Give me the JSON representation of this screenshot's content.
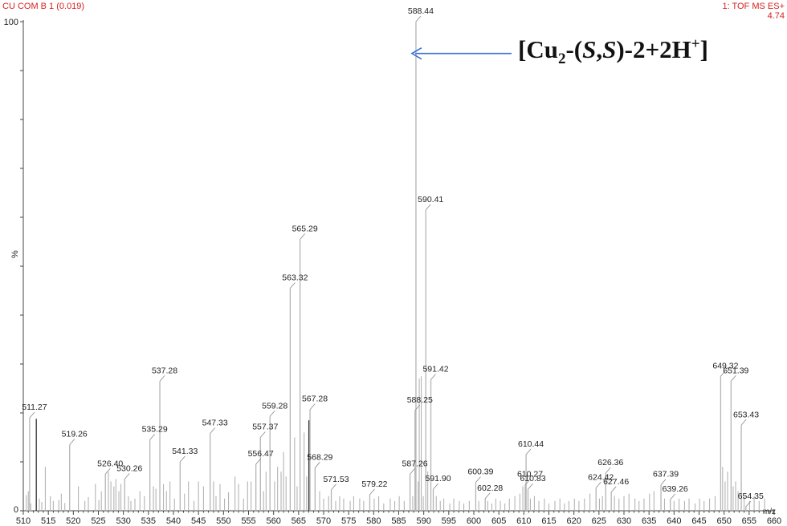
{
  "header": {
    "left_title": "CU COM B 1 (0.019)",
    "right_title": "1: TOF MS ES+",
    "right_value": "4.74"
  },
  "annotation": {
    "prefix": "[Cu",
    "sub": "2",
    "mid1": "-(",
    "s1": "S",
    "comma": ",",
    "s2": "S",
    "mid2": ")-2+2H",
    "sup": "+",
    "suffix": "]",
    "arrow_target_mz": 588.44,
    "arrow_level": 93.5
  },
  "colors": {
    "peak": "#b4b4b4",
    "peak_dark": "#333333",
    "arrow": "#3a6fd8",
    "header": "#d62020"
  },
  "chart_data": {
    "type": "bar",
    "title": "",
    "xlabel": "m/z",
    "ylabel": "%",
    "xlim": [
      510,
      660
    ],
    "ylim": [
      0,
      100
    ],
    "x_ticks": [
      510,
      515,
      520,
      525,
      530,
      535,
      540,
      545,
      550,
      555,
      560,
      565,
      570,
      575,
      580,
      585,
      590,
      595,
      600,
      605,
      610,
      615,
      620,
      625,
      630,
      635,
      640,
      645,
      650,
      655,
      660
    ],
    "y_ticks": [
      0,
      100
    ],
    "labeled_peaks": [
      {
        "mz": 511.27,
        "intensity": 19,
        "label": "511.27"
      },
      {
        "mz": 519.26,
        "intensity": 13.5,
        "label": "519.26"
      },
      {
        "mz": 526.4,
        "intensity": 7.5,
        "label": "526.40"
      },
      {
        "mz": 530.26,
        "intensity": 6.5,
        "label": "530.26"
      },
      {
        "mz": 535.29,
        "intensity": 14.5,
        "label": "535.29"
      },
      {
        "mz": 537.28,
        "intensity": 26.5,
        "label": "537.28"
      },
      {
        "mz": 541.33,
        "intensity": 10,
        "label": "541.33"
      },
      {
        "mz": 547.33,
        "intensity": 15.8,
        "label": "547.33"
      },
      {
        "mz": 556.47,
        "intensity": 9.5,
        "label": "556.47"
      },
      {
        "mz": 557.37,
        "intensity": 15,
        "label": "557.37"
      },
      {
        "mz": 559.28,
        "intensity": 19.3,
        "label": "559.28"
      },
      {
        "mz": 563.32,
        "intensity": 45.5,
        "label": "563.32"
      },
      {
        "mz": 565.29,
        "intensity": 55.5,
        "label": "565.29"
      },
      {
        "mz": 567.28,
        "intensity": 20.7,
        "label": "567.28"
      },
      {
        "mz": 568.29,
        "intensity": 8.8,
        "label": "568.29"
      },
      {
        "mz": 571.53,
        "intensity": 4.3,
        "label": "571.53"
      },
      {
        "mz": 579.22,
        "intensity": 3.3,
        "label": "579.22"
      },
      {
        "mz": 587.26,
        "intensity": 7.5,
        "label": "587.26"
      },
      {
        "mz": 588.25,
        "intensity": 20.5,
        "label": "588.25"
      },
      {
        "mz": 588.44,
        "intensity": 100,
        "label": "588.44"
      },
      {
        "mz": 590.41,
        "intensity": 61.5,
        "label": "590.41"
      },
      {
        "mz": 591.42,
        "intensity": 26.8,
        "label": "591.42"
      },
      {
        "mz": 591.9,
        "intensity": 4.4,
        "label": "591.90"
      },
      {
        "mz": 600.39,
        "intensity": 5.8,
        "label": "600.39"
      },
      {
        "mz": 602.28,
        "intensity": 2.5,
        "label": "602.28"
      },
      {
        "mz": 610.27,
        "intensity": 5.3,
        "label": "610.27"
      },
      {
        "mz": 610.44,
        "intensity": 11.5,
        "label": "610.44"
      },
      {
        "mz": 610.83,
        "intensity": 4.4,
        "label": "610.83"
      },
      {
        "mz": 624.42,
        "intensity": 4.7,
        "label": "624.42"
      },
      {
        "mz": 626.36,
        "intensity": 7.7,
        "label": "626.36"
      },
      {
        "mz": 627.46,
        "intensity": 3.8,
        "label": "627.46"
      },
      {
        "mz": 637.39,
        "intensity": 5.3,
        "label": "637.39"
      },
      {
        "mz": 639.26,
        "intensity": 2.3,
        "label": "639.26"
      },
      {
        "mz": 649.32,
        "intensity": 27.5,
        "label": "649.32"
      },
      {
        "mz": 651.39,
        "intensity": 26.5,
        "label": "651.39"
      },
      {
        "mz": 653.43,
        "intensity": 17.5,
        "label": "653.43"
      },
      {
        "mz": 654.35,
        "intensity": 0.8,
        "label": "654.35"
      }
    ],
    "minor_peaks": [
      {
        "mz": 510.6,
        "intensity": 3.2
      },
      {
        "mz": 511.0,
        "intensity": 4
      },
      {
        "mz": 511.5,
        "intensity": 1.5
      },
      {
        "mz": 512.6,
        "intensity": 18.8,
        "dark": true
      },
      {
        "mz": 513.2,
        "intensity": 2.5
      },
      {
        "mz": 513.7,
        "intensity": 1.8
      },
      {
        "mz": 514.4,
        "intensity": 9
      },
      {
        "mz": 515.4,
        "intensity": 3
      },
      {
        "mz": 516.0,
        "intensity": 2
      },
      {
        "mz": 517.1,
        "intensity": 2.2
      },
      {
        "mz": 517.6,
        "intensity": 3.5
      },
      {
        "mz": 518.3,
        "intensity": 1.6
      },
      {
        "mz": 521.0,
        "intensity": 5
      },
      {
        "mz": 522.3,
        "intensity": 2
      },
      {
        "mz": 523.0,
        "intensity": 2.8
      },
      {
        "mz": 524.4,
        "intensity": 5.5
      },
      {
        "mz": 525.1,
        "intensity": 2.2
      },
      {
        "mz": 525.6,
        "intensity": 4
      },
      {
        "mz": 527.0,
        "intensity": 8
      },
      {
        "mz": 527.5,
        "intensity": 6
      },
      {
        "mz": 528.1,
        "intensity": 5
      },
      {
        "mz": 528.5,
        "intensity": 6.5
      },
      {
        "mz": 529.1,
        "intensity": 4
      },
      {
        "mz": 529.5,
        "intensity": 5.5
      },
      {
        "mz": 531.0,
        "intensity": 3
      },
      {
        "mz": 531.5,
        "intensity": 2
      },
      {
        "mz": 532.3,
        "intensity": 2.5
      },
      {
        "mz": 533.3,
        "intensity": 4
      },
      {
        "mz": 534.2,
        "intensity": 3
      },
      {
        "mz": 536.0,
        "intensity": 5
      },
      {
        "mz": 536.5,
        "intensity": 4.5
      },
      {
        "mz": 538.0,
        "intensity": 5.5
      },
      {
        "mz": 538.6,
        "intensity": 4
      },
      {
        "mz": 539.3,
        "intensity": 6
      },
      {
        "mz": 540.2,
        "intensity": 2.5
      },
      {
        "mz": 542.2,
        "intensity": 3.5
      },
      {
        "mz": 543.0,
        "intensity": 6
      },
      {
        "mz": 544.1,
        "intensity": 2
      },
      {
        "mz": 545.0,
        "intensity": 6
      },
      {
        "mz": 546.0,
        "intensity": 5
      },
      {
        "mz": 548.0,
        "intensity": 6
      },
      {
        "mz": 548.5,
        "intensity": 3
      },
      {
        "mz": 549.3,
        "intensity": 5.5
      },
      {
        "mz": 550.2,
        "intensity": 2.5
      },
      {
        "mz": 551.0,
        "intensity": 3.8
      },
      {
        "mz": 552.3,
        "intensity": 7
      },
      {
        "mz": 553.0,
        "intensity": 5.5
      },
      {
        "mz": 554.0,
        "intensity": 2.5
      },
      {
        "mz": 554.8,
        "intensity": 6
      },
      {
        "mz": 555.5,
        "intensity": 6
      },
      {
        "mz": 558.0,
        "intensity": 4
      },
      {
        "mz": 558.5,
        "intensity": 8
      },
      {
        "mz": 560.2,
        "intensity": 6
      },
      {
        "mz": 560.8,
        "intensity": 9
      },
      {
        "mz": 561.5,
        "intensity": 8
      },
      {
        "mz": 562.0,
        "intensity": 12
      },
      {
        "mz": 562.5,
        "intensity": 7
      },
      {
        "mz": 564.2,
        "intensity": 15
      },
      {
        "mz": 564.7,
        "intensity": 5
      },
      {
        "mz": 566.1,
        "intensity": 16
      },
      {
        "mz": 566.6,
        "intensity": 7
      },
      {
        "mz": 567.05,
        "intensity": 18.5,
        "dark": true
      },
      {
        "mz": 569.2,
        "intensity": 4
      },
      {
        "mz": 570.0,
        "intensity": 2.5
      },
      {
        "mz": 571.0,
        "intensity": 3
      },
      {
        "mz": 572.4,
        "intensity": 2
      },
      {
        "mz": 573.2,
        "intensity": 3
      },
      {
        "mz": 574.0,
        "intensity": 2.5
      },
      {
        "mz": 575.3,
        "intensity": 2
      },
      {
        "mz": 576.0,
        "intensity": 3
      },
      {
        "mz": 577.2,
        "intensity": 2.5
      },
      {
        "mz": 578.0,
        "intensity": 2
      },
      {
        "mz": 580.1,
        "intensity": 2.5
      },
      {
        "mz": 581.0,
        "intensity": 3
      },
      {
        "mz": 582.0,
        "intensity": 1.5
      },
      {
        "mz": 583.3,
        "intensity": 2.5
      },
      {
        "mz": 584.2,
        "intensity": 2
      },
      {
        "mz": 585.1,
        "intensity": 3
      },
      {
        "mz": 586.1,
        "intensity": 2
      },
      {
        "mz": 587.8,
        "intensity": 3
      },
      {
        "mz": 588.9,
        "intensity": 6
      },
      {
        "mz": 589.1,
        "intensity": 27
      },
      {
        "mz": 589.5,
        "intensity": 27.5
      },
      {
        "mz": 589.9,
        "intensity": 3
      },
      {
        "mz": 590.8,
        "intensity": 8
      },
      {
        "mz": 592.5,
        "intensity": 3
      },
      {
        "mz": 593.3,
        "intensity": 2
      },
      {
        "mz": 594.0,
        "intensity": 2.5
      },
      {
        "mz": 595.2,
        "intensity": 1.5
      },
      {
        "mz": 596.0,
        "intensity": 2.5
      },
      {
        "mz": 597.1,
        "intensity": 2
      },
      {
        "mz": 598.0,
        "intensity": 1.5
      },
      {
        "mz": 599.1,
        "intensity": 2
      },
      {
        "mz": 601.0,
        "intensity": 2
      },
      {
        "mz": 602.8,
        "intensity": 2
      },
      {
        "mz": 603.6,
        "intensity": 1.5
      },
      {
        "mz": 604.4,
        "intensity": 2.5
      },
      {
        "mz": 605.3,
        "intensity": 2
      },
      {
        "mz": 606.2,
        "intensity": 1.5
      },
      {
        "mz": 607.1,
        "intensity": 2.5
      },
      {
        "mz": 608.2,
        "intensity": 3
      },
      {
        "mz": 609.2,
        "intensity": 3.5
      },
      {
        "mz": 609.8,
        "intensity": 5
      },
      {
        "mz": 611.3,
        "intensity": 2.5
      },
      {
        "mz": 612.1,
        "intensity": 3
      },
      {
        "mz": 613.0,
        "intensity": 2
      },
      {
        "mz": 614.1,
        "intensity": 2.5
      },
      {
        "mz": 615.0,
        "intensity": 1.5
      },
      {
        "mz": 616.2,
        "intensity": 2
      },
      {
        "mz": 617.2,
        "intensity": 2.5
      },
      {
        "mz": 618.1,
        "intensity": 1.5
      },
      {
        "mz": 619.0,
        "intensity": 2
      },
      {
        "mz": 620.1,
        "intensity": 2.5
      },
      {
        "mz": 621.0,
        "intensity": 2
      },
      {
        "mz": 622.1,
        "intensity": 2.5
      },
      {
        "mz": 623.2,
        "intensity": 3.5
      },
      {
        "mz": 625.1,
        "intensity": 2.5
      },
      {
        "mz": 625.7,
        "intensity": 3
      },
      {
        "mz": 628.1,
        "intensity": 3
      },
      {
        "mz": 629.0,
        "intensity": 2.5
      },
      {
        "mz": 630.0,
        "intensity": 3
      },
      {
        "mz": 631.0,
        "intensity": 3.5
      },
      {
        "mz": 632.2,
        "intensity": 2.5
      },
      {
        "mz": 633.0,
        "intensity": 2
      },
      {
        "mz": 634.0,
        "intensity": 2.5
      },
      {
        "mz": 635.1,
        "intensity": 3.5
      },
      {
        "mz": 636.0,
        "intensity": 4
      },
      {
        "mz": 638.1,
        "intensity": 2.5
      },
      {
        "mz": 640.0,
        "intensity": 2
      },
      {
        "mz": 641.0,
        "intensity": 2.5
      },
      {
        "mz": 642.1,
        "intensity": 2
      },
      {
        "mz": 643.0,
        "intensity": 2.5
      },
      {
        "mz": 644.2,
        "intensity": 1.5
      },
      {
        "mz": 645.1,
        "intensity": 2.5
      },
      {
        "mz": 646.0,
        "intensity": 2
      },
      {
        "mz": 647.1,
        "intensity": 2.5
      },
      {
        "mz": 648.2,
        "intensity": 3
      },
      {
        "mz": 649.7,
        "intensity": 9
      },
      {
        "mz": 650.2,
        "intensity": 6
      },
      {
        "mz": 650.7,
        "intensity": 8
      },
      {
        "mz": 651.8,
        "intensity": 5
      },
      {
        "mz": 652.3,
        "intensity": 6
      },
      {
        "mz": 652.8,
        "intensity": 4
      },
      {
        "mz": 654.0,
        "intensity": 3
      },
      {
        "mz": 655.1,
        "intensity": 2
      },
      {
        "mz": 656.0,
        "intensity": 3
      },
      {
        "mz": 657.0,
        "intensity": 2
      },
      {
        "mz": 658.1,
        "intensity": 2.5
      }
    ]
  }
}
